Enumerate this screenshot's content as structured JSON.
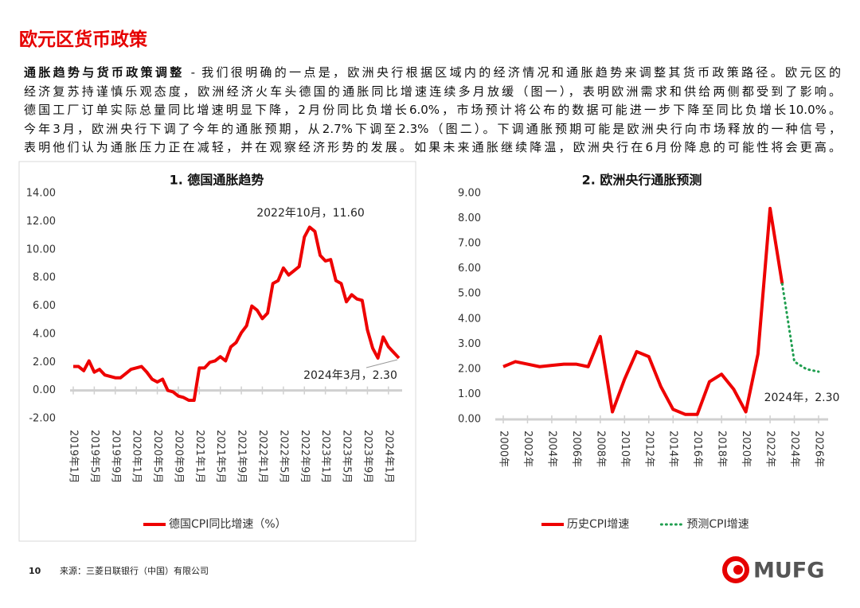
{
  "header": {
    "title": "欧元区货币政策"
  },
  "paragraph": {
    "lead": "通胀趋势与货币政策调整",
    "lines": [
      " - 我们很明确的一点是，欧洲央行根据区域内的经济情况和通胀趋势来调整其货币政策路径。欧元区的",
      "经济复苏持谨慎乐观态度，欧洲经济火车头德国的通胀同比增速连续多月放缓（图一），表明欧洲需求和供给两侧都受到了影响。",
      "德国工厂订单实际总量同比增速明显下降，2月份同比负增长6.0%，市场预计将公布的数据可能进一步下降至同比负增长10.0%。",
      "今年3月，欧洲央行下调了今年的通胀预期，从2.7%下调至2.3%（图二）。下调通胀预期可能是欧洲央行向市场释放的一种信号，",
      "表明他们认为通胀压力正在减轻，并在观察经济形势的发展。如果未来通胀继续降温，欧洲央行在6月份降息的可能性将会更高。"
    ]
  },
  "chart_data": [
    {
      "type": "line",
      "title": "1. 德国通胀趋势",
      "categories": [
        "2019年1月",
        null,
        null,
        null,
        "2019年5月",
        null,
        null,
        null,
        "2019年9月",
        null,
        null,
        null,
        "2020年1月",
        null,
        null,
        null,
        "2020年5月",
        null,
        null,
        null,
        "2020年9月",
        null,
        null,
        null,
        "2021年1月",
        null,
        null,
        null,
        "2021年5月",
        null,
        null,
        null,
        "2021年9月",
        null,
        null,
        null,
        "2022年1月",
        null,
        null,
        null,
        "2022年5月",
        null,
        null,
        null,
        "2022年9月",
        null,
        null,
        null,
        "2023年1月",
        null,
        null,
        null,
        "2023年5月",
        null,
        null,
        null,
        "2023年9月",
        null,
        null,
        null,
        "2024年1月",
        null,
        null
      ],
      "series": [
        {
          "name": "德国CPI同比增速（%）",
          "color": "#ee0000",
          "values": [
            1.7,
            1.7,
            1.4,
            2.1,
            1.3,
            1.5,
            1.1,
            1.0,
            0.9,
            0.9,
            1.2,
            1.5,
            1.6,
            1.7,
            1.3,
            0.8,
            0.6,
            0.8,
            0.0,
            -0.1,
            -0.4,
            -0.5,
            -0.7,
            -0.7,
            1.6,
            1.6,
            2.0,
            2.1,
            2.4,
            2.1,
            3.1,
            3.4,
            4.1,
            4.6,
            6.0,
            5.7,
            5.1,
            5.5,
            7.6,
            7.8,
            8.7,
            8.2,
            8.5,
            8.8,
            10.9,
            11.6,
            11.3,
            9.6,
            9.2,
            9.3,
            7.8,
            7.6,
            6.3,
            6.8,
            6.5,
            6.4,
            4.3,
            3.0,
            2.3,
            3.8,
            3.1,
            2.7,
            2.3
          ]
        }
      ],
      "ylim": [
        -2,
        14
      ],
      "yticks": [
        {
          "value": -2,
          "label": "-2.00"
        },
        {
          "value": 0,
          "label": "0.00"
        },
        {
          "value": 2,
          "label": "2.00"
        },
        {
          "value": 4,
          "label": "4.00"
        },
        {
          "value": 6,
          "label": "6.00"
        },
        {
          "value": 8,
          "label": "8.00"
        },
        {
          "value": 10,
          "label": "10.00"
        },
        {
          "value": 12,
          "label": "12.00"
        },
        {
          "value": 14,
          "label": "14.00"
        }
      ],
      "annotations": [
        "2022年10月，11.60",
        "2024年3月，2.30"
      ],
      "legend": "bottom"
    },
    {
      "type": "line",
      "title": "2. 欧洲央行通胀预测",
      "categories": [
        "2000年",
        null,
        "2002年",
        null,
        "2004年",
        null,
        "2006年",
        null,
        "2008年",
        null,
        "2010年",
        null,
        "2012年",
        null,
        "2014年",
        null,
        "2016年",
        null,
        "2018年",
        null,
        "2020年",
        null,
        "2022年",
        null,
        "2024年",
        null,
        "2026年"
      ],
      "series": [
        {
          "name": "历史CPI增速",
          "color": "#ee0000",
          "style": "solid",
          "values": [
            2.1,
            2.3,
            2.2,
            2.1,
            2.15,
            2.2,
            2.2,
            2.1,
            3.3,
            0.3,
            1.6,
            2.7,
            2.5,
            1.3,
            0.4,
            0.2,
            0.2,
            1.5,
            1.8,
            1.2,
            0.3,
            2.6,
            8.4,
            5.4,
            null,
            null,
            null
          ]
        },
        {
          "name": "预测CPI增速",
          "color": "#1f9e4f",
          "style": "dotted",
          "values": [
            null,
            null,
            null,
            null,
            null,
            null,
            null,
            null,
            null,
            null,
            null,
            null,
            null,
            null,
            null,
            null,
            null,
            null,
            null,
            null,
            null,
            null,
            null,
            5.4,
            2.3,
            2.0,
            1.9
          ]
        }
      ],
      "ylim": [
        0,
        9
      ],
      "yticks": [
        {
          "value": 0,
          "label": "0.00"
        },
        {
          "value": 1,
          "label": "1.00"
        },
        {
          "value": 2,
          "label": "2.00"
        },
        {
          "value": 3,
          "label": "3.00"
        },
        {
          "value": 4,
          "label": "4.00"
        },
        {
          "value": 5,
          "label": "5.00"
        },
        {
          "value": 6,
          "label": "6.00"
        },
        {
          "value": 7,
          "label": "7.00"
        },
        {
          "value": 8,
          "label": "8.00"
        },
        {
          "value": 9,
          "label": "9.00"
        }
      ],
      "annotations": [
        "2024年，2.30"
      ],
      "legend": "bottom"
    }
  ],
  "footer": {
    "page": "10",
    "source": "来源：三菱日联银行（中国）有限公司",
    "logo": "MUFG"
  }
}
